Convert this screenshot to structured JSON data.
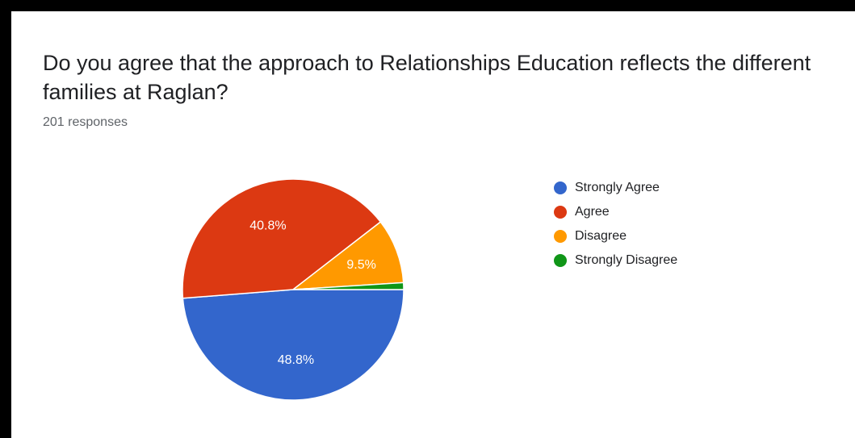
{
  "chart_data": {
    "type": "pie",
    "title": "Do you agree that the approach to Relationships Education reflects the different families at Raglan?",
    "subtitle": "201 responses",
    "legend_position": "right",
    "categories": [
      "Strongly Agree",
      "Agree",
      "Disagree",
      "Strongly Disagree"
    ],
    "values": [
      48.8,
      40.8,
      9.5,
      1.0
    ],
    "data_labels": [
      "48.8%",
      "40.8%",
      "9.5%",
      ""
    ],
    "colors": [
      "#3366cc",
      "#dc3912",
      "#ff9900",
      "#109618"
    ]
  }
}
